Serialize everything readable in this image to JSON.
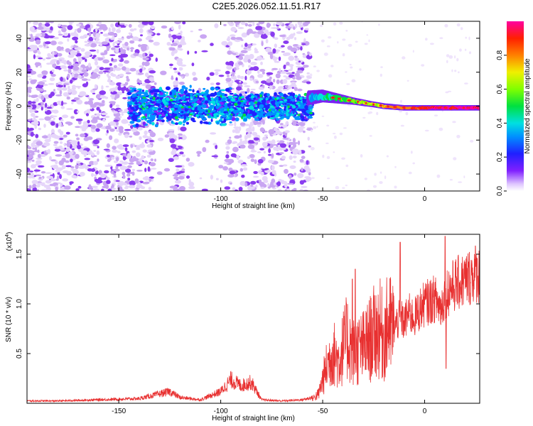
{
  "title": "C2E5.2026.052.11.51.R17",
  "colors": {
    "snr_line": "#e83030",
    "blob_main": "#7020f0",
    "blob_light": "#c8a8f0",
    "frame": "#000000"
  },
  "chart_data": [
    {
      "type": "heatmap",
      "xlabel": "Height of straight line (km)",
      "ylabel": "Frequency (Hz)",
      "xlim": [
        -195,
        27
      ],
      "ylim": [
        -50,
        50
      ],
      "x_ticks": [
        -150,
        -100,
        -50,
        0
      ],
      "x_tick_labels": [
        "-150",
        "-100",
        "-50",
        "0"
      ],
      "y_ticks": [
        -40,
        -20,
        0,
        20,
        40
      ],
      "y_tick_labels": [
        "-40",
        "-20",
        "0",
        "20",
        "40"
      ],
      "colorbar": {
        "label": "Normalized spectral amplitude",
        "range": [
          0,
          1
        ],
        "ticks": [
          0.0,
          0.2,
          0.4,
          0.6,
          0.8
        ],
        "tick_labels": [
          "0.0",
          "0.2",
          "0.4",
          "0.6",
          "0.8"
        ]
      },
      "description_points": [
        {
          "x": -195,
          "y_center": 0,
          "y_spread": 50,
          "amplitude": 0.15
        },
        {
          "x": -140,
          "y_center": 0,
          "y_spread": 50,
          "amplitude": 0.2
        },
        {
          "x": -100,
          "y_center": 0,
          "y_spread": 8,
          "amplitude": 0.3
        },
        {
          "x": -60,
          "y_center": 0,
          "y_spread": 10,
          "amplitude": 0.25
        },
        {
          "x": -50,
          "y_center": 6,
          "y_spread": 4,
          "amplitude": 0.35
        },
        {
          "x": -40,
          "y_center": 4,
          "y_spread": 3,
          "amplitude": 0.55
        },
        {
          "x": -25,
          "y_center": 1,
          "y_spread": 2,
          "amplitude": 0.75
        },
        {
          "x": 0,
          "y_center": -1,
          "y_spread": 2,
          "amplitude": 0.9
        },
        {
          "x": 27,
          "y_center": -1,
          "y_spread": 2,
          "amplitude": 0.85
        }
      ]
    },
    {
      "type": "line",
      "xlabel": "Height of straight line (km)",
      "ylabel": "SNR (10 * v/v)",
      "y_multiplier_label": "(x10",
      "y_multiplier_exponent": "4",
      "y_multiplier_close": ")",
      "xlim": [
        -195,
        27
      ],
      "ylim": [
        0,
        1.7
      ],
      "x_ticks": [
        -150,
        -100,
        -50,
        0
      ],
      "x_tick_labels": [
        "-150",
        "-100",
        "-50",
        "0"
      ],
      "y_ticks": [
        0.5,
        1.0,
        1.5
      ],
      "y_tick_labels": [
        "0.5",
        "1.0",
        "1.5"
      ],
      "series": [
        {
          "x": [
            -195,
            -180,
            -160,
            -140,
            -130,
            -125,
            -120,
            -110,
            -100,
            -95,
            -90,
            -85,
            -80,
            -70,
            -60,
            -55,
            -52,
            -50,
            -48,
            -45,
            -42,
            -40,
            -38,
            -35,
            -30,
            -28,
            -25,
            -22,
            -20,
            -18,
            -15,
            -12,
            -10,
            -8,
            -5,
            -2,
            0,
            5,
            8,
            10,
            12,
            15,
            20,
            25,
            27
          ],
          "y": [
            0.02,
            0.02,
            0.03,
            0.04,
            0.08,
            0.1,
            0.05,
            0.03,
            0.1,
            0.2,
            0.15,
            0.18,
            0.03,
            0.02,
            0.03,
            0.05,
            0.1,
            0.25,
            0.4,
            0.55,
            0.45,
            0.6,
            0.7,
            0.55,
            0.6,
            0.65,
            0.75,
            0.8,
            0.7,
            0.85,
            0.8,
            0.9,
            0.85,
            0.95,
            0.9,
            1.0,
            1.05,
            1.1,
            1.0,
            1.15,
            1.2,
            1.25,
            1.3,
            1.38,
            1.35
          ],
          "peaks": [
            {
              "x": -34,
              "y": 1.35
            },
            {
              "x": -35.5,
              "y": 1.25
            },
            {
              "x": -12,
              "y": 1.62
            },
            {
              "x": 10,
              "y": 1.68
            },
            {
              "x": 10.5,
              "y": 0.35
            }
          ]
        }
      ]
    }
  ]
}
